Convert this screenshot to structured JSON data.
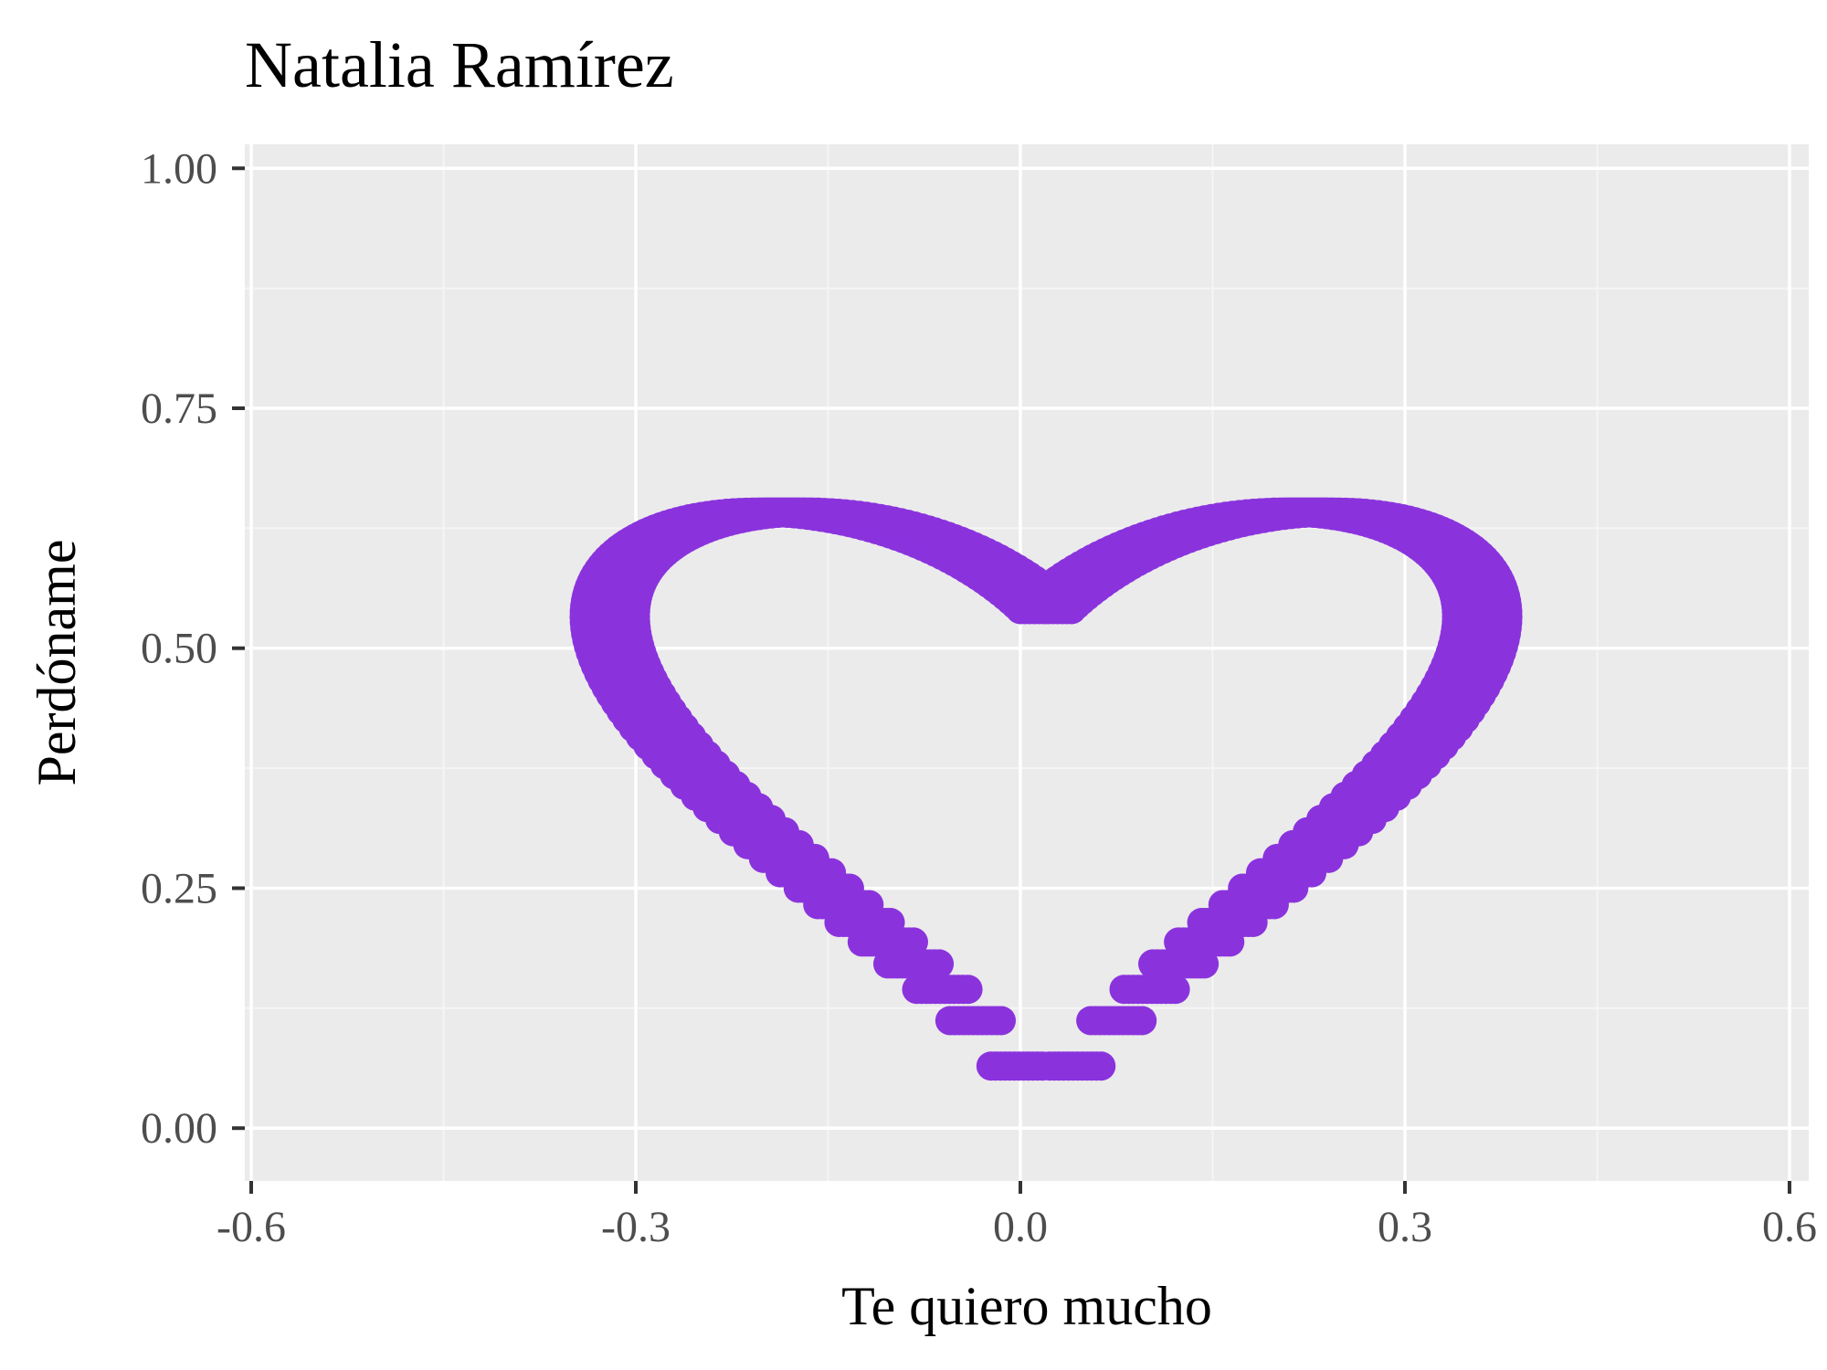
{
  "chart_data": {
    "type": "scatter",
    "title": "Natalia Ramírez",
    "xlabel": "Te quiero mucho",
    "ylabel": "Perdóname",
    "xlim": [
      -0.605,
      0.615
    ],
    "ylim": [
      -0.055,
      1.025
    ],
    "x_ticks": [
      -0.6,
      -0.3,
      0.0,
      0.3,
      0.6
    ],
    "x_tick_labels": [
      "-0.6",
      "-0.3",
      "0.0",
      "0.3",
      "0.6"
    ],
    "y_ticks": [
      0.0,
      0.25,
      0.5,
      0.75,
      1.0
    ],
    "y_tick_labels": [
      "0.00",
      "0.25",
      "0.50",
      "0.75",
      "1.00"
    ],
    "grid": true,
    "legend": "none",
    "series": [
      {
        "curve": "heart x = sin(t)*cos(t)*log|t| + s, y = sqrt(|t|)*cos(t), t in [-1, 1], with horizontal offset s from 0 to 0.04",
        "t_range": [
          -1,
          1
        ],
        "x_shift_range": [
          0,
          0.04
        ],
        "color": "#8A33DD"
      }
    ]
  },
  "colors": {
    "panel_background": "#EBEBEB",
    "grid_major": "#FFFFFF",
    "grid_minor": "#F5F5F5",
    "points": "#8A33DD",
    "axis_ticks": "#333333",
    "tick_text": "#4D4D4D"
  }
}
